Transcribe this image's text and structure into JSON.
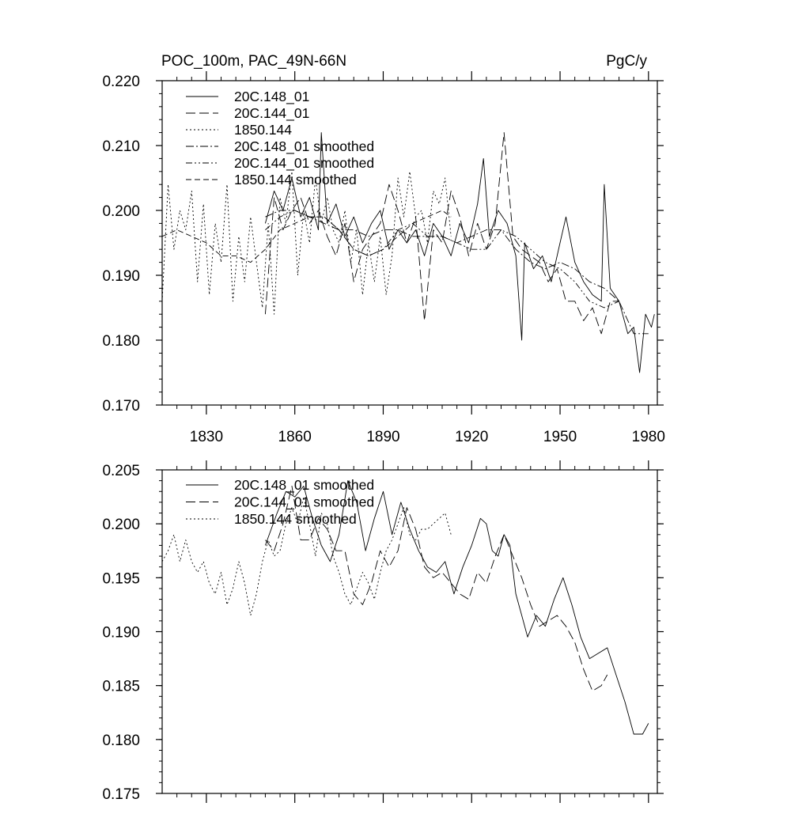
{
  "chart_data": [
    {
      "type": "line",
      "title": "POC_100m, PAC_49N-66N",
      "units": "PgC/y",
      "xlabel": "",
      "ylabel": "",
      "xlim": [
        1815,
        1983
      ],
      "ylim": [
        0.17,
        0.22
      ],
      "x_ticks": [
        1830,
        1860,
        1890,
        1920,
        1950,
        1980
      ],
      "x_tick_labels": [
        "1830",
        "1860",
        "1890",
        "1920",
        "1950",
        "1980"
      ],
      "y_ticks": [
        0.17,
        0.18,
        0.19,
        0.2,
        0.21,
        0.22
      ],
      "y_tick_labels": [
        "0.170",
        "0.180",
        "0.190",
        "0.200",
        "0.210",
        "0.220"
      ],
      "legend_position": "top-left",
      "grid": false,
      "series": [
        {
          "name": "20C.148_01",
          "dash": "solid",
          "x": [
            1850,
            1853,
            1856,
            1859,
            1862,
            1865,
            1868,
            1869,
            1871,
            1874,
            1877,
            1880,
            1883,
            1886,
            1889,
            1892,
            1895,
            1898,
            1901,
            1904,
            1907,
            1910,
            1913,
            1916,
            1919,
            1922,
            1924,
            1926,
            1929,
            1932,
            1935,
            1937,
            1938,
            1941,
            1944,
            1947,
            1950,
            1952,
            1955,
            1958,
            1961,
            1964,
            1965,
            1967,
            1970,
            1973,
            1975,
            1977,
            1979,
            1981,
            1982
          ],
          "values": [
            0.198,
            0.203,
            0.2,
            0.205,
            0.199,
            0.202,
            0.197,
            0.212,
            0.198,
            0.201,
            0.196,
            0.199,
            0.195,
            0.198,
            0.2,
            0.194,
            0.197,
            0.195,
            0.197,
            0.193,
            0.198,
            0.196,
            0.193,
            0.198,
            0.195,
            0.201,
            0.208,
            0.196,
            0.2,
            0.198,
            0.193,
            0.18,
            0.195,
            0.191,
            0.193,
            0.189,
            0.195,
            0.199,
            0.192,
            0.189,
            0.187,
            0.186,
            0.204,
            0.188,
            0.186,
            0.181,
            0.182,
            0.175,
            0.184,
            0.182,
            0.184
          ]
        },
        {
          "name": "20C.144_01",
          "dash": "longdash",
          "x": [
            1850,
            1853,
            1856,
            1859,
            1862,
            1865,
            1868,
            1871,
            1874,
            1877,
            1880,
            1883,
            1886,
            1889,
            1892,
            1895,
            1898,
            1901,
            1904,
            1907,
            1910,
            1913,
            1916,
            1919,
            1922,
            1925,
            1928,
            1931,
            1934,
            1937,
            1940,
            1943,
            1946,
            1949,
            1952,
            1955,
            1958,
            1961,
            1964,
            1967,
            1970
          ],
          "values": [
            0.184,
            0.202,
            0.197,
            0.2,
            0.202,
            0.198,
            0.2,
            0.196,
            0.193,
            0.198,
            0.189,
            0.194,
            0.196,
            0.198,
            0.204,
            0.2,
            0.195,
            0.199,
            0.183,
            0.197,
            0.195,
            0.203,
            0.199,
            0.193,
            0.198,
            0.194,
            0.198,
            0.212,
            0.196,
            0.194,
            0.193,
            0.192,
            0.189,
            0.191,
            0.186,
            0.186,
            0.183,
            0.185,
            0.181,
            0.186,
            0.186
          ]
        },
        {
          "name": "1850.144",
          "dash": "dot",
          "x": [
            1815,
            1817,
            1819,
            1821,
            1823,
            1825,
            1827,
            1829,
            1831,
            1833,
            1835,
            1837,
            1839,
            1841,
            1843,
            1845,
            1847,
            1849,
            1851,
            1853,
            1855,
            1857,
            1859,
            1861,
            1863,
            1865,
            1867,
            1869,
            1871,
            1873,
            1875,
            1877,
            1879,
            1881,
            1883,
            1885,
            1887,
            1889,
            1891,
            1893,
            1895,
            1897,
            1899,
            1901,
            1903,
            1905,
            1907,
            1909,
            1911,
            1913
          ],
          "values": [
            0.186,
            0.204,
            0.194,
            0.2,
            0.197,
            0.203,
            0.189,
            0.201,
            0.187,
            0.198,
            0.192,
            0.204,
            0.186,
            0.196,
            0.189,
            0.199,
            0.192,
            0.185,
            0.198,
            0.184,
            0.202,
            0.198,
            0.206,
            0.19,
            0.2,
            0.195,
            0.205,
            0.198,
            0.202,
            0.197,
            0.195,
            0.2,
            0.192,
            0.197,
            0.187,
            0.195,
            0.189,
            0.196,
            0.187,
            0.193,
            0.205,
            0.199,
            0.206,
            0.199,
            0.2,
            0.195,
            0.203,
            0.201,
            0.205,
            0.196
          ]
        },
        {
          "name": "20C.148_01 smoothed",
          "dash": "dashdot",
          "x": [
            1850,
            1855,
            1860,
            1865,
            1870,
            1875,
            1880,
            1885,
            1890,
            1895,
            1900,
            1905,
            1910,
            1915,
            1920,
            1925,
            1930,
            1935,
            1940,
            1945,
            1950,
            1955,
            1960,
            1965,
            1970,
            1975,
            1980
          ],
          "values": [
            0.199,
            0.2,
            0.2,
            0.199,
            0.198,
            0.197,
            0.197,
            0.196,
            0.197,
            0.197,
            0.196,
            0.196,
            0.196,
            0.195,
            0.196,
            0.197,
            0.197,
            0.194,
            0.192,
            0.191,
            0.192,
            0.191,
            0.189,
            0.188,
            0.186,
            0.181,
            0.181
          ]
        },
        {
          "name": "20C.144_01 smoothed",
          "dash": "dashdotdot",
          "x": [
            1850,
            1855,
            1860,
            1865,
            1870,
            1875,
            1880,
            1885,
            1890,
            1895,
            1900,
            1905,
            1910,
            1915,
            1920,
            1925,
            1930,
            1935,
            1940,
            1945,
            1950,
            1955,
            1960,
            1965,
            1970
          ],
          "values": [
            0.197,
            0.199,
            0.2,
            0.199,
            0.199,
            0.197,
            0.194,
            0.193,
            0.194,
            0.197,
            0.198,
            0.196,
            0.196,
            0.195,
            0.194,
            0.194,
            0.197,
            0.196,
            0.194,
            0.192,
            0.191,
            0.189,
            0.186,
            0.185,
            0.186
          ]
        },
        {
          "name": "1850.144 smoothed",
          "dash": "mediumdash",
          "x": [
            1815,
            1820,
            1825,
            1830,
            1835,
            1840,
            1845,
            1850,
            1855,
            1860,
            1865,
            1870,
            1875,
            1880,
            1885,
            1890,
            1895,
            1900,
            1905,
            1910,
            1913
          ],
          "values": [
            0.196,
            0.197,
            0.196,
            0.195,
            0.193,
            0.193,
            0.192,
            0.194,
            0.197,
            0.198,
            0.199,
            0.199,
            0.197,
            0.194,
            0.193,
            0.194,
            0.196,
            0.198,
            0.199,
            0.2,
            0.199
          ]
        }
      ]
    },
    {
      "type": "line",
      "title": "",
      "xlabel": "",
      "ylabel": "",
      "xlim": [
        1815,
        1983
      ],
      "ylim": [
        0.175,
        0.205
      ],
      "x_ticks": [
        1830,
        1860,
        1890,
        1920,
        1950,
        1980
      ],
      "y_ticks": [
        0.175,
        0.18,
        0.185,
        0.19,
        0.195,
        0.2,
        0.205
      ],
      "y_tick_labels": [
        "0.175",
        "0.180",
        "0.185",
        "0.190",
        "0.195",
        "0.200",
        "0.205"
      ],
      "legend_position": "top-left",
      "grid": false,
      "series": [
        {
          "name": "20C.148_01 smoothed",
          "dash": "solid",
          "x": [
            1850,
            1854,
            1857,
            1860,
            1863,
            1866,
            1869,
            1872,
            1875,
            1878,
            1881,
            1884,
            1887,
            1890,
            1893,
            1896,
            1899,
            1902,
            1905,
            1908,
            1911,
            1914,
            1917,
            1920,
            1923,
            1925,
            1927,
            1929,
            1931,
            1933,
            1935,
            1937,
            1939,
            1942,
            1945,
            1948,
            1951,
            1954,
            1957,
            1960,
            1963,
            1966,
            1969,
            1972,
            1975,
            1978,
            1980
          ],
          "values": [
            0.198,
            0.201,
            0.203,
            0.2025,
            0.2035,
            0.2005,
            0.198,
            0.1965,
            0.199,
            0.204,
            0.202,
            0.1975,
            0.2005,
            0.203,
            0.199,
            0.202,
            0.1995,
            0.1975,
            0.196,
            0.1955,
            0.1965,
            0.1935,
            0.196,
            0.198,
            0.2005,
            0.2,
            0.1975,
            0.197,
            0.199,
            0.198,
            0.1935,
            0.1915,
            0.1895,
            0.1915,
            0.1905,
            0.193,
            0.195,
            0.1925,
            0.1895,
            0.1875,
            0.188,
            0.1885,
            0.186,
            0.1835,
            0.1805,
            0.1805,
            0.1815
          ]
        },
        {
          "name": "20C.144_01 smoothed",
          "dash": "longdash",
          "x": [
            1850,
            1853,
            1856,
            1859,
            1862,
            1865,
            1868,
            1871,
            1874,
            1877,
            1880,
            1883,
            1886,
            1889,
            1892,
            1895,
            1898,
            1901,
            1904,
            1907,
            1910,
            1913,
            1916,
            1919,
            1922,
            1925,
            1928,
            1931,
            1934,
            1937,
            1940,
            1943,
            1946,
            1949,
            1952,
            1955,
            1958,
            1961,
            1964,
            1966
          ],
          "values": [
            0.1985,
            0.1975,
            0.2,
            0.2035,
            0.1985,
            0.1985,
            0.2005,
            0.1995,
            0.1975,
            0.1975,
            0.1935,
            0.1925,
            0.1945,
            0.1975,
            0.196,
            0.1975,
            0.2015,
            0.1995,
            0.196,
            0.195,
            0.1955,
            0.1945,
            0.1935,
            0.193,
            0.1955,
            0.1945,
            0.197,
            0.199,
            0.197,
            0.195,
            0.1925,
            0.1905,
            0.191,
            0.1915,
            0.1905,
            0.189,
            0.1865,
            0.1845,
            0.185,
            0.186
          ]
        },
        {
          "name": "1850.144 smoothed",
          "dash": "dot",
          "x": [
            1815,
            1817,
            1819,
            1821,
            1823,
            1825,
            1827,
            1829,
            1831,
            1833,
            1835,
            1837,
            1839,
            1841,
            1843,
            1845,
            1847,
            1849,
            1851,
            1853,
            1855,
            1857,
            1859,
            1861,
            1863,
            1865,
            1867,
            1869,
            1871,
            1873,
            1875,
            1877,
            1879,
            1881,
            1883,
            1885,
            1887,
            1889,
            1891,
            1893,
            1895,
            1897,
            1899,
            1901,
            1903,
            1905,
            1907,
            1909,
            1911,
            1913
          ],
          "values": [
            0.1965,
            0.1975,
            0.199,
            0.1965,
            0.1985,
            0.1965,
            0.1955,
            0.1965,
            0.1945,
            0.1935,
            0.1955,
            0.1925,
            0.194,
            0.1965,
            0.1945,
            0.1915,
            0.1935,
            0.1965,
            0.1985,
            0.197,
            0.1975,
            0.2,
            0.2015,
            0.2,
            0.2025,
            0.2,
            0.197,
            0.201,
            0.2,
            0.197,
            0.1955,
            0.1935,
            0.1925,
            0.194,
            0.1955,
            0.1945,
            0.193,
            0.1955,
            0.1975,
            0.1985,
            0.2,
            0.2015,
            0.199,
            0.1985,
            0.1995,
            0.1995,
            0.2,
            0.2005,
            0.201,
            0.199
          ]
        }
      ]
    }
  ]
}
